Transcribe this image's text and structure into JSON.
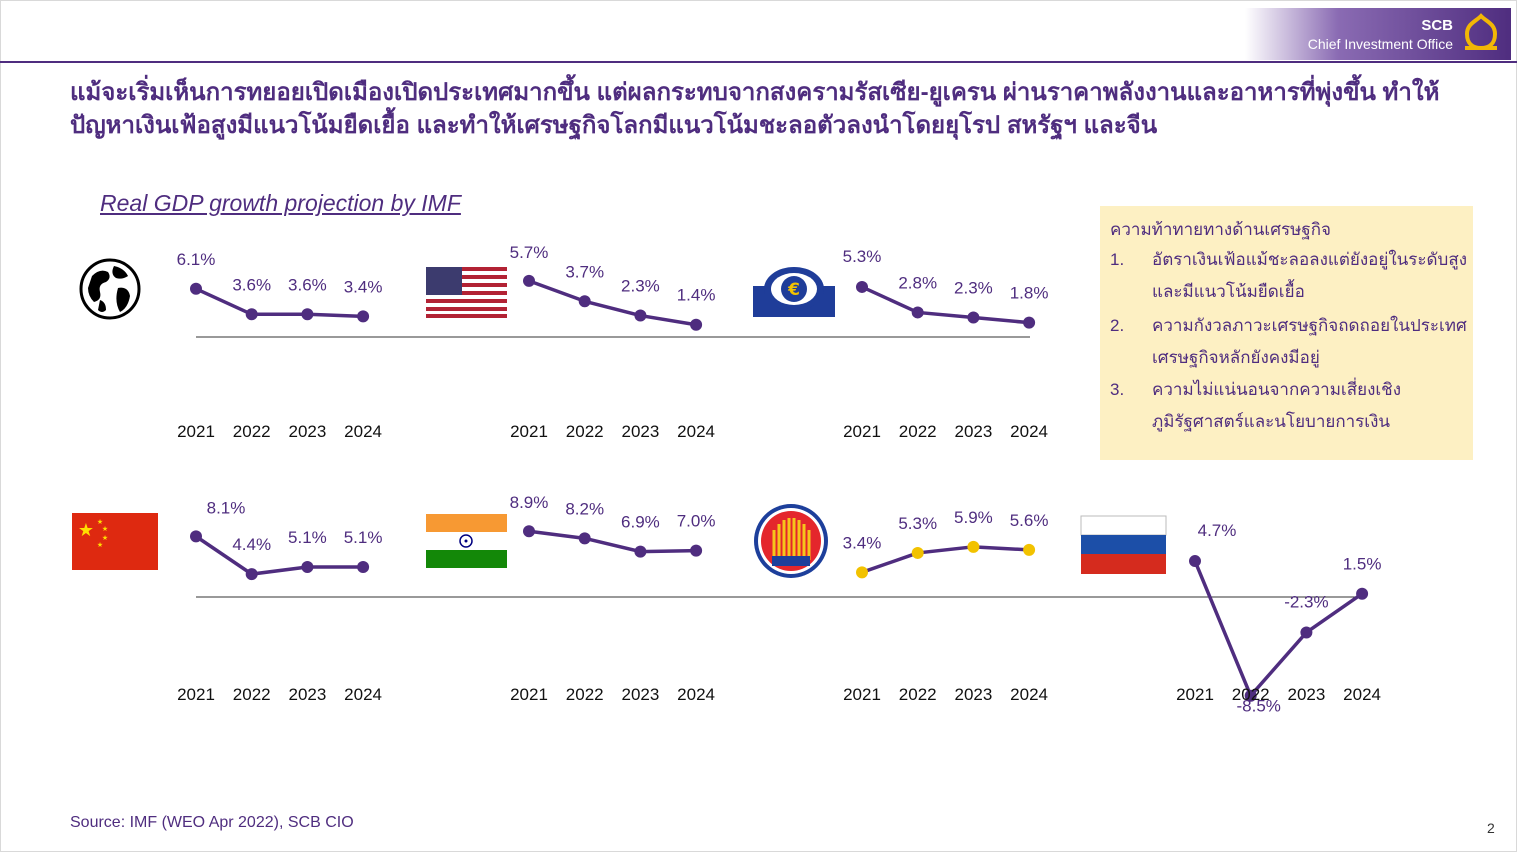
{
  "brand": {
    "name": "SCB",
    "subtitle": "Chief Investment Office"
  },
  "headline": "แม้จะเริ่มเห็นการทยอยเปิดเมืองเปิดประเทศมากขึ้น แต่ผลกระทบจากสงครามรัสเซีย-ยูเครน ผ่านราคาพลังงานและอาหารที่พุ่งขึ้น ทำให้ปัญหาเงินเฟ้อสูงมีแนวโน้มยืดเยื้อ และทำให้เศรษฐกิจโลกมีแนวโน้มชะลอตัวลงนำโดยยุโรป สหรัฐฯ และจีน",
  "chart_title": "Real GDP growth projection by IMF",
  "note": {
    "title": "ความท้าทายทางด้านเศรษฐกิจ",
    "items": [
      {
        "num": "1.",
        "text": "อัตราเงินเฟ้อแม้ชะลอลงแต่ยังอยู่ในระดับสูงและมีแนวโน้มยืดเยื้อ"
      },
      {
        "num": "2.",
        "text": "ความกังวลภาวะเศรษฐกิจถดถอยในประเทศเศรษฐกิจหลักยังคงมีอยู่"
      },
      {
        "num": "3.",
        "text": "ความไม่แน่นอนจากความเสี่ยงเชิงภูมิรัฐศาสตร์และนโยบายการเงิน"
      }
    ]
  },
  "colors": {
    "primary": "#4f2d7f",
    "asean_marker": "#f2c200",
    "note_bg": "#fdf0c3"
  },
  "chart_data": [
    {
      "type": "line",
      "region": "World",
      "icon": "globe-icon",
      "x": [
        "2021",
        "2022",
        "2023",
        "2024"
      ],
      "values": [
        6.1,
        3.6,
        3.6,
        3.4
      ],
      "labels": [
        "6.1%",
        "3.6%",
        "3.6%",
        "3.4%"
      ]
    },
    {
      "type": "line",
      "region": "United States",
      "icon": "us-flag-icon",
      "x": [
        "2021",
        "2022",
        "2023",
        "2024"
      ],
      "values": [
        5.7,
        3.7,
        2.3,
        1.4
      ],
      "labels": [
        "5.7%",
        "3.7%",
        "2.3%",
        "1.4%"
      ]
    },
    {
      "type": "line",
      "region": "Euro Area",
      "icon": "ecb-euro-icon",
      "x": [
        "2021",
        "2022",
        "2023",
        "2024"
      ],
      "values": [
        5.3,
        2.8,
        2.3,
        1.8
      ],
      "labels": [
        "5.3%",
        "2.8%",
        "2.3%",
        "1.8%"
      ]
    },
    {
      "type": "line",
      "region": "China",
      "icon": "china-flag-icon",
      "x": [
        "2021",
        "2022",
        "2023",
        "2024"
      ],
      "values": [
        8.1,
        4.4,
        5.1,
        5.1
      ],
      "labels": [
        "8.1%",
        "4.4%",
        "5.1%",
        "5.1%"
      ]
    },
    {
      "type": "line",
      "region": "India",
      "icon": "india-flag-icon",
      "x": [
        "2021",
        "2022",
        "2023",
        "2024"
      ],
      "values": [
        8.9,
        8.2,
        6.9,
        7.0
      ],
      "labels": [
        "8.9%",
        "8.2%",
        "6.9%",
        "7.0%"
      ]
    },
    {
      "type": "line",
      "region": "ASEAN",
      "icon": "asean-logo-icon",
      "x": [
        "2021",
        "2022",
        "2023",
        "2024"
      ],
      "values": [
        3.4,
        5.3,
        5.9,
        5.6
      ],
      "labels": [
        "3.4%",
        "5.3%",
        "5.9%",
        "5.6%"
      ]
    },
    {
      "type": "line",
      "region": "Russia",
      "icon": "russia-flag-icon",
      "x": [
        "2021",
        "2022",
        "2023",
        "2024"
      ],
      "values": [
        4.7,
        -8.5,
        -2.3,
        1.5
      ],
      "labels": [
        "4.7%",
        "-8.5%",
        "-2.3%",
        "1.5%"
      ]
    }
  ],
  "source": "Source: IMF (WEO Apr 2022), SCB CIO",
  "page_number": "2"
}
